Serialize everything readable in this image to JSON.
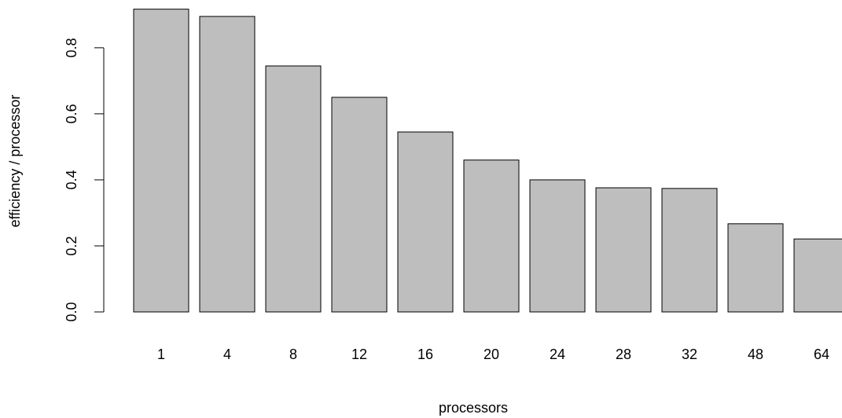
{
  "chart_data": {
    "type": "bar",
    "x_label": "processors",
    "y_label": "efficiency / processor",
    "categories": [
      "1",
      "4",
      "8",
      "12",
      "16",
      "20",
      "24",
      "28",
      "32",
      "48",
      "64"
    ],
    "values": [
      0.917,
      0.895,
      0.745,
      0.65,
      0.545,
      0.46,
      0.4,
      0.376,
      0.374,
      0.267,
      0.221
    ],
    "color": "#bebebe",
    "ylim": [
      0,
      0.94
    ],
    "yticks": [
      {
        "value": 0,
        "label": "0.0"
      },
      0.2,
      0.4,
      0.6,
      0.8
    ]
  }
}
